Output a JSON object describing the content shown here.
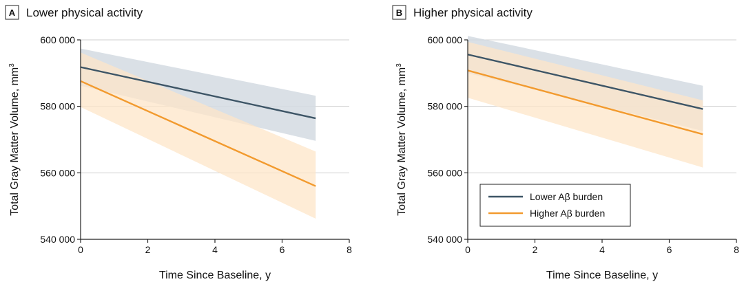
{
  "chart_data": [
    {
      "type": "line",
      "panel_letter": "A",
      "title": "Lower physical activity",
      "xlabel": "Time Since Baseline, y",
      "ylabel": "Total Gray Matter Volume, mm",
      "ylabel_superscript": "3",
      "xlim": [
        0,
        8
      ],
      "ylim": [
        540000,
        600000
      ],
      "xticks": [
        0,
        2,
        4,
        6,
        8
      ],
      "yticks": [
        540000,
        560000,
        580000,
        600000
      ],
      "ytick_labels": [
        "540 000",
        "560 000",
        "580 000",
        "600 000"
      ],
      "grid": "horizontal",
      "series": [
        {
          "key": "lower",
          "x": [
            0,
            7
          ],
          "y": [
            591800,
            576400
          ],
          "lower_ci": [
            586200,
            569600
          ],
          "upper_ci": [
            597400,
            583200
          ]
        },
        {
          "key": "higher",
          "x": [
            0,
            7
          ],
          "y": [
            587600,
            556000
          ],
          "lower_ci": [
            579800,
            546200
          ],
          "upper_ci": [
            596200,
            566400
          ]
        }
      ]
    },
    {
      "type": "line",
      "panel_letter": "B",
      "title": "Higher physical activity",
      "xlabel": "Time Since Baseline, y",
      "ylabel": "Total Gray Matter Volume, mm",
      "ylabel_superscript": "3",
      "xlim": [
        0,
        8
      ],
      "ylim": [
        540000,
        600000
      ],
      "xticks": [
        0,
        2,
        4,
        6,
        8
      ],
      "yticks": [
        540000,
        560000,
        580000,
        600000
      ],
      "ytick_labels": [
        "540 000",
        "560 000",
        "580 000",
        "600 000"
      ],
      "grid": "horizontal",
      "legend": {
        "placement": "bottom-left"
      },
      "series": [
        {
          "key": "lower",
          "name": "Lower Aβ burden",
          "x": [
            0,
            7
          ],
          "y": [
            595600,
            579200
          ],
          "lower_ci": [
            590000,
            572600
          ],
          "upper_ci": [
            601200,
            586200
          ]
        },
        {
          "key": "higher",
          "name": "Higher Aβ burden",
          "x": [
            0,
            7
          ],
          "y": [
            590800,
            571600
          ],
          "lower_ci": [
            582600,
            561600
          ],
          "upper_ci": [
            599400,
            581800
          ]
        }
      ]
    }
  ],
  "colors": {
    "lower": "#3d5566",
    "higher": "#f29a2e",
    "lower_band": "#d3dbe2",
    "higher_band": "#fde5c8"
  }
}
